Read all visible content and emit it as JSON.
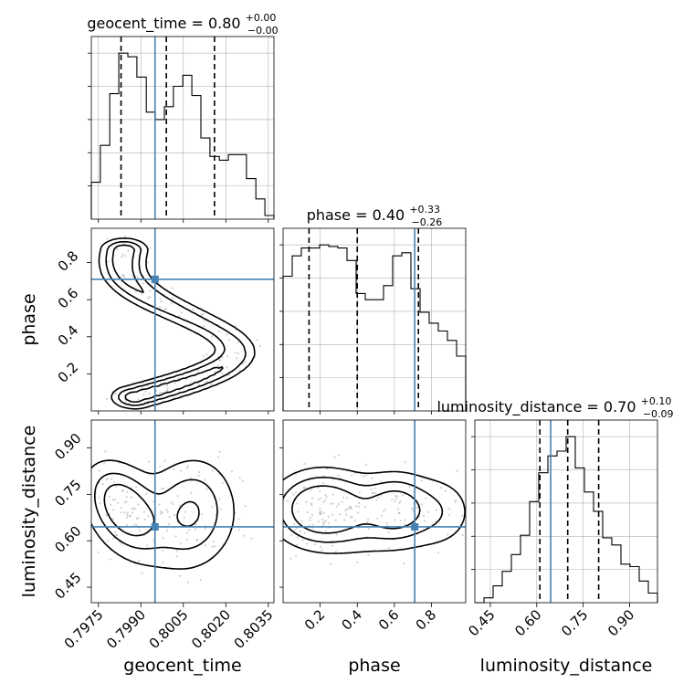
{
  "colors": {
    "truth": "#4682b4",
    "grid": "#b0b0b0",
    "line": "#000000",
    "density": "#000000",
    "scatter": "#9a9a9a"
  },
  "chart_data": {
    "type": "corner",
    "parameters": [
      "geocent_time",
      "phase",
      "luminosity_distance"
    ],
    "truths": {
      "geocent_time": 0.7995,
      "phase": 0.71,
      "luminosity_distance": 0.645
    },
    "quantiles": {
      "geocent_time": [
        0.7983,
        0.7999,
        0.8016
      ],
      "phase": [
        0.14,
        0.4,
        0.73
      ],
      "luminosity_distance": [
        0.61,
        0.7,
        0.8
      ]
    },
    "titles": {
      "geocent_time": {
        "label": "geocent_time",
        "value": "0.80",
        "plus": "+0.00",
        "minus": "−0.00"
      },
      "phase": {
        "label": "phase",
        "value": "0.40",
        "plus": "+0.33",
        "minus": "−0.26"
      },
      "luminosity_distance": {
        "label": "luminosity_distance",
        "value": "0.70",
        "plus": "+0.10",
        "minus": "−0.09"
      }
    },
    "axes": {
      "geocent_time": {
        "range": [
          0.79725,
          0.8037
        ],
        "ticks": [
          0.7975,
          0.799,
          0.8005,
          0.802,
          0.8035
        ],
        "tick_labels": [
          "0.7975",
          "0.7990",
          "0.8005",
          "0.8020",
          "0.8035"
        ]
      },
      "phase": {
        "range": [
          0.0,
          0.985
        ],
        "ticks_x": [
          0.2,
          0.4,
          0.6,
          0.8
        ],
        "tick_labels_x": [
          "0.2",
          "0.4",
          "0.6",
          "0.8"
        ],
        "ticks_y": [
          0.2,
          0.4,
          0.6,
          0.8
        ],
        "tick_labels_y": [
          "0.2",
          "0.4",
          "0.6",
          "0.8"
        ]
      },
      "luminosity_distance": {
        "range": [
          0.4,
          0.99
        ],
        "ticks": [
          0.45,
          0.6,
          0.75,
          0.9
        ],
        "tick_labels": [
          "0.45",
          "0.60",
          "0.75",
          "0.90"
        ]
      }
    },
    "histograms": {
      "geocent_time": {
        "edges": [
          0.79725,
          0.79757,
          0.7979,
          0.79822,
          0.79854,
          0.79886,
          0.79919,
          0.79951,
          0.79983,
          0.80015,
          0.80048,
          0.8008,
          0.80112,
          0.80144,
          0.80177,
          0.80209,
          0.80241,
          0.80273,
          0.80306,
          0.80338,
          0.8037
        ],
        "counts": [
          20,
          40,
          68,
          90,
          88,
          77,
          58,
          54,
          61,
          72,
          78,
          67,
          44,
          34,
          32,
          35,
          35,
          22,
          11,
          2
        ]
      },
      "phase": {
        "edges": [
          0.0,
          0.0492,
          0.0985,
          0.1477,
          0.197,
          0.2462,
          0.2955,
          0.3447,
          0.394,
          0.4432,
          0.4925,
          0.5417,
          0.591,
          0.6402,
          0.6895,
          0.7387,
          0.788,
          0.8372,
          0.8865,
          0.9357,
          0.985
        ],
        "counts": [
          86,
          99,
          104,
          104,
          106,
          105,
          104,
          96,
          75,
          71,
          71,
          80,
          99,
          101,
          78,
          63,
          56,
          51,
          45,
          35
        ]
      },
      "luminosity_distance": {
        "edges": [
          0.4,
          0.4295,
          0.459,
          0.4885,
          0.518,
          0.5475,
          0.577,
          0.6065,
          0.636,
          0.6655,
          0.695,
          0.7245,
          0.754,
          0.7835,
          0.813,
          0.8425,
          0.872,
          0.9015,
          0.931,
          0.9605,
          0.99
        ],
        "counts": [
          0,
          2,
          7,
          13,
          20,
          28,
          42,
          54,
          61,
          63,
          69,
          56,
          46,
          38,
          27,
          24,
          16,
          15,
          9,
          4
        ]
      }
    },
    "contour_levels": [
      "0.393",
      "0.865",
      "0.989"
    ]
  }
}
